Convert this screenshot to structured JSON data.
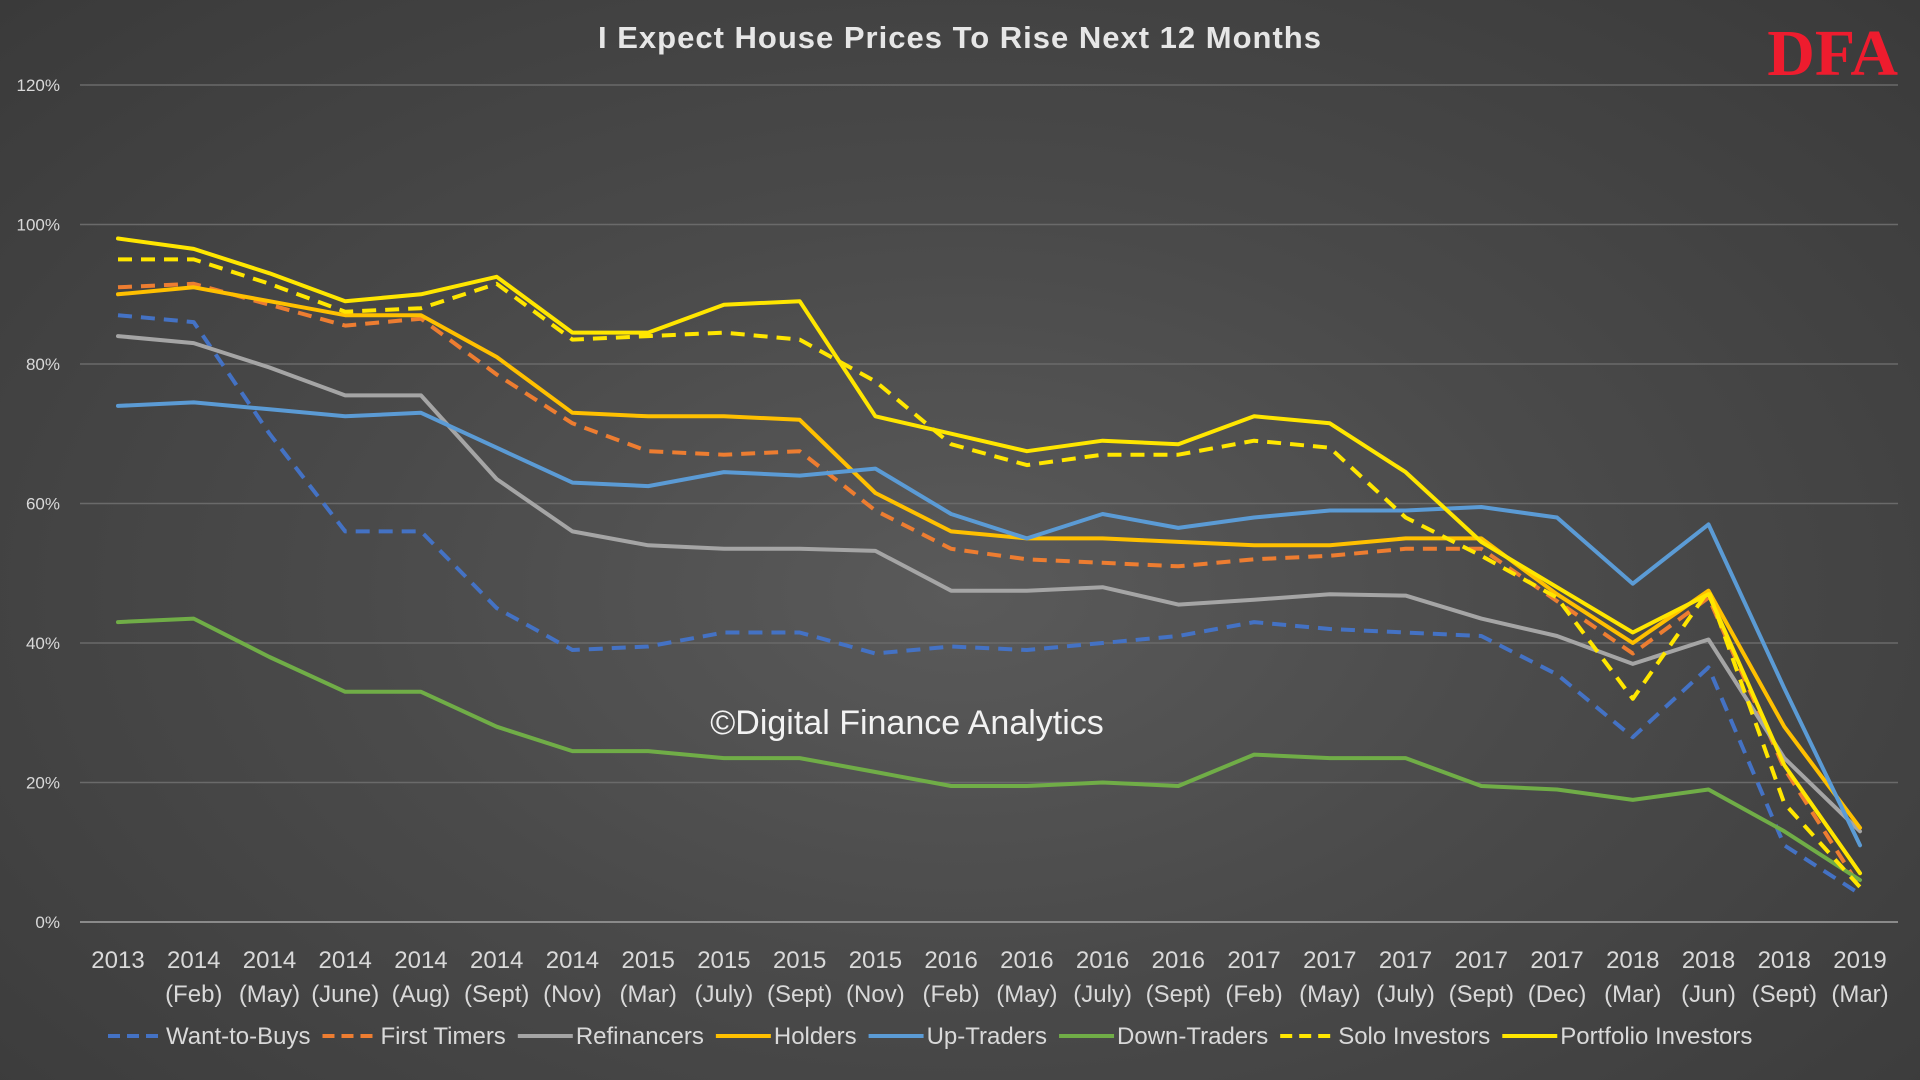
{
  "chart_data": {
    "type": "line",
    "title": "I Expect House Prices To Rise Next 12 Months",
    "logo": "DFA",
    "watermark": "©Digital Finance Analytics",
    "ylim": [
      0,
      120
    ],
    "yticks": [
      "0%",
      "20%",
      "40%",
      "60%",
      "80%",
      "100%",
      "120%"
    ],
    "ytick_values": [
      0,
      20,
      40,
      60,
      80,
      100,
      120
    ],
    "categories": [
      [
        "2013",
        ""
      ],
      [
        "2014",
        "(Feb)"
      ],
      [
        "2014",
        "(May)"
      ],
      [
        "2014",
        "(June)"
      ],
      [
        "2014",
        "(Aug)"
      ],
      [
        "2014",
        "(Sept)"
      ],
      [
        "2014",
        "(Nov)"
      ],
      [
        "2015",
        "(Mar)"
      ],
      [
        "2015",
        "(July)"
      ],
      [
        "2015",
        "(Sept)"
      ],
      [
        "2015",
        "(Nov)"
      ],
      [
        "2016",
        "(Feb)"
      ],
      [
        "2016",
        "(May)"
      ],
      [
        "2016",
        "(July)"
      ],
      [
        "2016",
        "(Sept)"
      ],
      [
        "2017",
        "(Feb)"
      ],
      [
        "2017",
        "(May)"
      ],
      [
        "2017",
        "(July)"
      ],
      [
        "2017",
        "(Sept)"
      ],
      [
        "2017",
        "(Dec)"
      ],
      [
        "2018",
        "(Mar)"
      ],
      [
        "2018",
        "(Jun)"
      ],
      [
        "2018",
        "(Sept)"
      ],
      [
        "2019",
        "(Mar)"
      ]
    ],
    "legend_position": "bottom",
    "series": [
      {
        "name": "Want-to-Buys",
        "color": "#4472c4",
        "dashed": true,
        "values": [
          87,
          86,
          70,
          56,
          56,
          45,
          39,
          39.5,
          41.5,
          41.5,
          38.5,
          39.5,
          39,
          40,
          41,
          43,
          42,
          41.5,
          41,
          35.5,
          26.5,
          36.5,
          11,
          4
        ]
      },
      {
        "name": "First Timers",
        "color": "#ed7d31",
        "dashed": true,
        "values": [
          91,
          91.5,
          88.5,
          85.5,
          86.5,
          78.5,
          71.5,
          67.5,
          67,
          67.5,
          59,
          53.5,
          52,
          51.5,
          51,
          52,
          52.5,
          53.5,
          53.5,
          46,
          38.5,
          46.5,
          22,
          5
        ]
      },
      {
        "name": "Refinancers",
        "color": "#a5a5a5",
        "dashed": false,
        "values": [
          84,
          83,
          79.5,
          75.5,
          75.5,
          63.5,
          56,
          54,
          53.5,
          53.5,
          53.2,
          47.5,
          47.5,
          48,
          45.5,
          46.2,
          47,
          46.8,
          43.5,
          41,
          37,
          40.5,
          23.5,
          13
        ]
      },
      {
        "name": "Holders",
        "color": "#ffc000",
        "dashed": false,
        "values": [
          90,
          91,
          89,
          87,
          87,
          81,
          73,
          72.5,
          72.5,
          72,
          61.5,
          56,
          55,
          55,
          54.5,
          54,
          54,
          55,
          55,
          47,
          40,
          47.5,
          28,
          13.5
        ]
      },
      {
        "name": "Up-Traders",
        "color": "#5b9bd5",
        "dashed": false,
        "values": [
          74,
          74.5,
          73.5,
          72.5,
          73,
          68,
          63,
          62.5,
          64.5,
          64,
          65,
          58.5,
          55,
          58.5,
          56.5,
          58,
          59,
          59,
          59.5,
          58,
          48.5,
          57,
          33.5,
          11
        ]
      },
      {
        "name": "Down-Traders",
        "color": "#70ad47",
        "dashed": false,
        "values": [
          43,
          43.5,
          38,
          33,
          33,
          28,
          24.5,
          24.5,
          23.5,
          23.5,
          21.5,
          19.5,
          19.5,
          20,
          19.5,
          24,
          23.5,
          23.5,
          19.5,
          19,
          17.5,
          19,
          13,
          6
        ]
      },
      {
        "name": "Solo Investors",
        "color": "#ffe600",
        "dashed": true,
        "values": [
          95,
          95,
          91.5,
          87.5,
          88,
          91.5,
          83.5,
          84,
          84.5,
          83.5,
          77.5,
          68.5,
          65.5,
          67,
          67,
          69,
          68,
          58,
          52.5,
          46.5,
          32,
          47.5,
          17,
          5
        ]
      },
      {
        "name": "Portfolio Investors",
        "color": "#ffe600",
        "dashed": false,
        "values": [
          98,
          96.5,
          93,
          89,
          90,
          92.5,
          84.5,
          84.5,
          88.5,
          89,
          72.5,
          70,
          67.5,
          69,
          68.5,
          72.5,
          71.5,
          64.5,
          54.5,
          48,
          41.5,
          47,
          22.5,
          7
        ]
      }
    ]
  }
}
